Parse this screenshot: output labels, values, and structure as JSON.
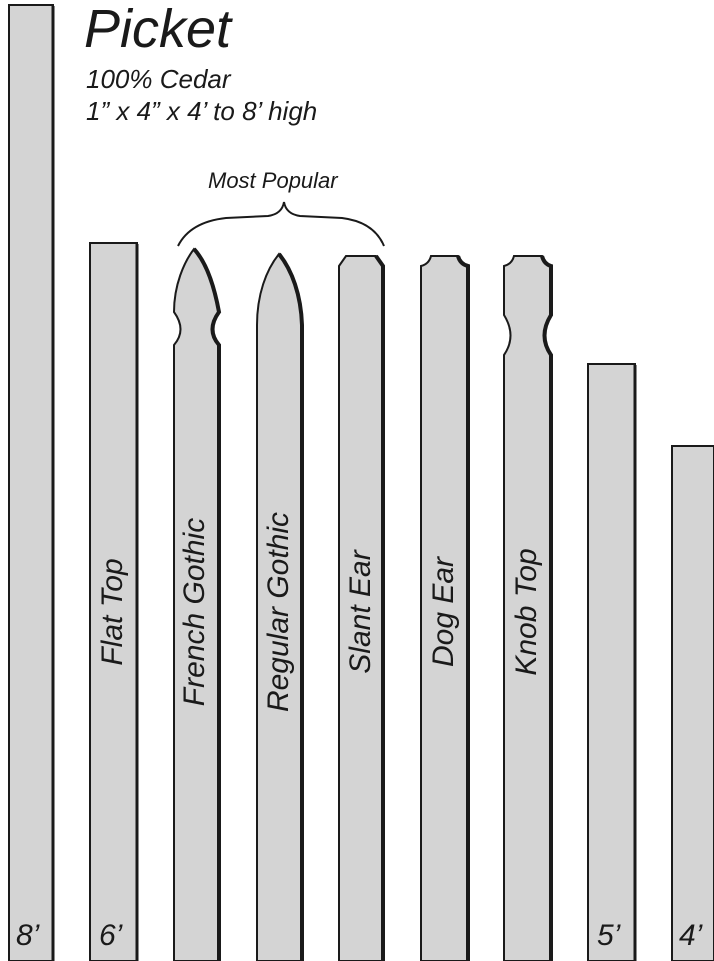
{
  "title": "Picket",
  "subtitle_lines": [
    "100% Cedar",
    "1” x 4” x 4’ to 8’ high"
  ],
  "most_popular_label": "Most Popular",
  "pickets": [
    {
      "style": "",
      "height_label": "8’"
    },
    {
      "style": "Flat Top",
      "height_label": "6’"
    },
    {
      "style": "French Gothic",
      "height_label": ""
    },
    {
      "style": "Regular Gothic",
      "height_label": ""
    },
    {
      "style": "Slant Ear",
      "height_label": ""
    },
    {
      "style": "Dog Ear",
      "height_label": ""
    },
    {
      "style": "Knob Top",
      "height_label": ""
    },
    {
      "style": "",
      "height_label": "5’"
    },
    {
      "style": "",
      "height_label": "4’"
    }
  ],
  "colors": {
    "picket_fill": "#d4d4d4",
    "outline": "#1a1a1a",
    "text": "#1a1a1a"
  }
}
